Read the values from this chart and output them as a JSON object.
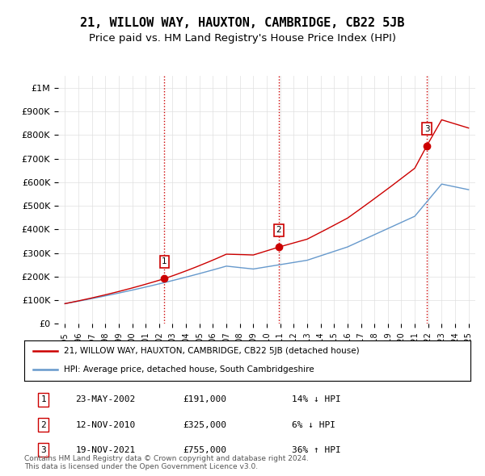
{
  "title": "21, WILLOW WAY, HAUXTON, CAMBRIDGE, CB22 5JB",
  "subtitle": "Price paid vs. HM Land Registry's House Price Index (HPI)",
  "title_fontsize": 11,
  "subtitle_fontsize": 9.5,
  "ylim": [
    0,
    1050000
  ],
  "yticks": [
    0,
    100000,
    200000,
    300000,
    400000,
    500000,
    600000,
    700000,
    800000,
    900000,
    1000000
  ],
  "ytick_labels": [
    "£0",
    "£100K",
    "£200K",
    "£300K",
    "£400K",
    "£500K",
    "£600K",
    "£700K",
    "£800K",
    "£900K",
    "£1M"
  ],
  "red_color": "#cc0000",
  "blue_color": "#6699cc",
  "sale_prices": [
    191000,
    325000,
    755000
  ],
  "sale_labels": [
    "1",
    "2",
    "3"
  ],
  "sale_year_vals": [
    2002.4,
    2010.9,
    2021.9
  ],
  "vline_color": "#cc0000",
  "legend_entries": [
    "21, WILLOW WAY, HAUXTON, CAMBRIDGE, CB22 5JB (detached house)",
    "HPI: Average price, detached house, South Cambridgeshire"
  ],
  "table_data": [
    [
      "1",
      "23-MAY-2002",
      "£191,000",
      "14% ↓ HPI"
    ],
    [
      "2",
      "12-NOV-2010",
      "£325,000",
      "6% ↓ HPI"
    ],
    [
      "3",
      "19-NOV-2021",
      "£755,000",
      "36% ↑ HPI"
    ]
  ],
  "footnote": "Contains HM Land Registry data © Crown copyright and database right 2024.\nThis data is licensed under the Open Government Licence v3.0.",
  "background_color": "#ffffff",
  "grid_color": "#e0e0e0"
}
